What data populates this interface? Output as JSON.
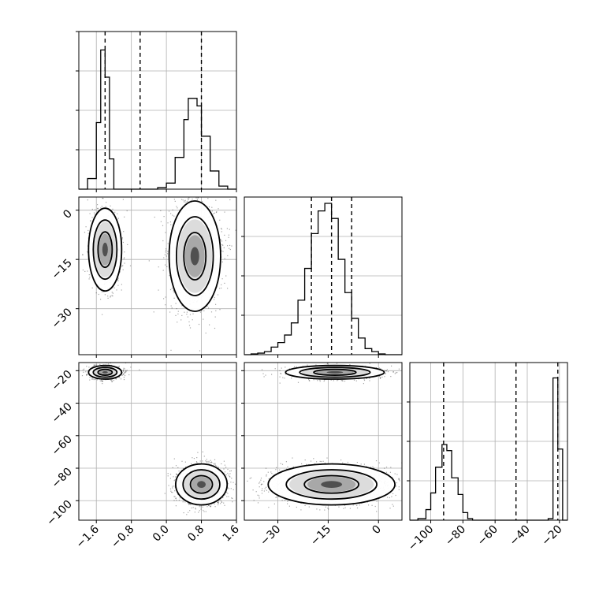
{
  "chart_data": {
    "type": "corner",
    "title": "",
    "grid": true,
    "parameters": [
      "",
      "",
      ""
    ],
    "panels": [
      {
        "id": "hist-p1",
        "type": "histogram",
        "param": 0,
        "xlim": [
          -2.0,
          1.6
        ],
        "bins": [
          [
            -2.0,
            0
          ],
          [
            -1.8,
            0.07
          ],
          [
            -1.6,
            0.44
          ],
          [
            -1.5,
            0.92
          ],
          [
            -1.4,
            0.74
          ],
          [
            -1.3,
            0.2
          ],
          [
            -1.2,
            0.0
          ],
          [
            -1.1,
            0
          ],
          [
            -0.9,
            0
          ],
          [
            -0.5,
            0
          ],
          [
            -0.3,
            0
          ],
          [
            -0.2,
            0.01
          ],
          [
            0.0,
            0.04
          ],
          [
            0.2,
            0.21
          ],
          [
            0.4,
            0.46
          ],
          [
            0.5,
            0.6
          ],
          [
            0.7,
            0.55
          ],
          [
            0.8,
            0.35
          ],
          [
            1.0,
            0.12
          ],
          [
            1.2,
            0.02
          ],
          [
            1.4,
            0.0
          ]
        ],
        "binwidth": 0.18,
        "quantiles": [
          -1.4,
          -0.6,
          0.8
        ]
      },
      {
        "id": "hist-p2",
        "type": "histogram",
        "param": 1,
        "xlim": [
          -40,
          7
        ],
        "bins": [
          [
            -40,
            0
          ],
          [
            -38,
            0.005
          ],
          [
            -36,
            0.01
          ],
          [
            -34,
            0.02
          ],
          [
            -32,
            0.05
          ],
          [
            -30,
            0.08
          ],
          [
            -28,
            0.13
          ],
          [
            -26,
            0.21
          ],
          [
            -24,
            0.36
          ],
          [
            -22,
            0.57
          ],
          [
            -20,
            0.8
          ],
          [
            -18,
            0.95
          ],
          [
            -16,
            1.0
          ],
          [
            -14,
            0.9
          ],
          [
            -12,
            0.63
          ],
          [
            -10,
            0.41
          ],
          [
            -8,
            0.24
          ],
          [
            -6,
            0.11
          ],
          [
            -4,
            0.04
          ],
          [
            -2,
            0.02
          ],
          [
            0,
            0.005
          ],
          [
            2,
            0.0
          ]
        ],
        "binwidth": 2,
        "quantiles": [
          -20,
          -14,
          -8
        ]
      },
      {
        "id": "hist-p3",
        "type": "histogram",
        "param": 2,
        "xlim": [
          -113,
          -15
        ],
        "bins": [
          [
            -113,
            0
          ],
          [
            -108,
            0.01
          ],
          [
            -103,
            0.07
          ],
          [
            -100,
            0.18
          ],
          [
            -97,
            0.35
          ],
          [
            -93,
            0.5
          ],
          [
            -90,
            0.46
          ],
          [
            -87,
            0.28
          ],
          [
            -83,
            0.17
          ],
          [
            -80,
            0.05
          ],
          [
            -77,
            0.01
          ],
          [
            -74,
            0.0
          ],
          [
            -27,
            0.01
          ],
          [
            -24,
            0.94
          ],
          [
            -21,
            0.47
          ],
          [
            -18,
            0.0
          ]
        ],
        "binwidth": 3,
        "quantiles": [
          -92,
          -47,
          -21
        ]
      }
    ],
    "scatter_panels": [
      {
        "id": "p1-vs-p2",
        "x_param": 0,
        "y_param": 1,
        "xlim": [
          -2.0,
          1.6
        ],
        "ylim": [
          -44,
          4
        ],
        "clusters": [
          {
            "cx": -1.4,
            "cy": -12,
            "sx": 0.18,
            "sy": 6,
            "n": 900
          },
          {
            "cx": 0.65,
            "cy": -14,
            "sx": 0.28,
            "sy": 8,
            "n": 1500
          }
        ]
      },
      {
        "id": "p1-vs-p3",
        "x_param": 0,
        "y_param": 2,
        "xlim": [
          -2.0,
          1.6
        ],
        "ylim": [
          -112,
          -15
        ],
        "clusters": [
          {
            "cx": -1.4,
            "cy": -21,
            "sx": 0.18,
            "sy": 2,
            "n": 900
          },
          {
            "cx": 0.8,
            "cy": -90,
            "sx": 0.28,
            "sy": 6,
            "n": 1500
          }
        ]
      },
      {
        "id": "p2-vs-p3",
        "x_param": 1,
        "y_param": 2,
        "xlim": [
          -40,
          7
        ],
        "ylim": [
          -112,
          -15
        ],
        "clusters": [
          {
            "cx": -13,
            "cy": -21,
            "sx": 7,
            "sy": 2,
            "n": 900
          },
          {
            "cx": -14,
            "cy": -90,
            "sx": 9,
            "sy": 6,
            "n": 1500
          }
        ]
      }
    ],
    "ticks": {
      "hist-p1": {
        "x": [
          -1.6,
          -0.8,
          0.0,
          0.8,
          1.6
        ],
        "labels": []
      },
      "p1-vs-p2": {
        "y": [
          0,
          -15,
          -30
        ],
        "y_labels": [
          "0",
          "−15",
          "−30"
        ]
      },
      "p1-vs-p3": {
        "x": [
          -1.6,
          -0.8,
          0.0,
          0.8,
          1.6
        ],
        "x_labels": [
          "−1.6",
          "−0.8",
          "0.0",
          "0.8",
          "1.6"
        ],
        "y": [
          -20,
          -40,
          -60,
          -80,
          -100
        ],
        "y_labels": [
          "−20",
          "−40",
          "−60",
          "−80",
          "−100"
        ]
      },
      "p2-vs-p3": {
        "x": [
          -30,
          -15,
          0
        ],
        "x_labels": [
          "−30",
          "−15",
          "0"
        ]
      },
      "hist-p3": {
        "x": [
          -100,
          -80,
          -60,
          -40,
          -20
        ],
        "x_labels": [
          "−100",
          "−80",
          "−60",
          "−40",
          "−20"
        ]
      }
    }
  }
}
